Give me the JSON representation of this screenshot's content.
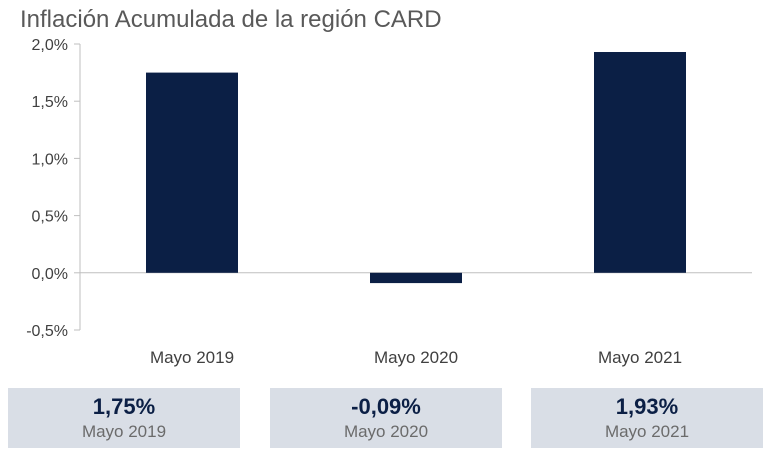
{
  "title": "Inflación Acumulada de la región CARD",
  "colors": {
    "bar": "#0b1f45",
    "axis": "#bfbfbf",
    "box": "#d9dee6"
  },
  "chart_data": {
    "type": "bar",
    "title": "Inflación Acumulada de la región CARD",
    "categories": [
      "Mayo 2019",
      "Mayo 2020",
      "Mayo 2021"
    ],
    "values": [
      1.75,
      -0.09,
      1.93
    ],
    "ylim": [
      -0.5,
      2.0
    ],
    "yticks": [
      -0.5,
      0.0,
      0.5,
      1.0,
      1.5,
      2.0
    ],
    "ytick_labels": [
      "-0,5%",
      "0,0%",
      "0,5%",
      "1,0%",
      "1,5%",
      "2,0%"
    ],
    "grid": false,
    "legend": "none"
  },
  "summary": [
    {
      "value": "1,75%",
      "label": "Mayo 2019"
    },
    {
      "value": "-0,09%",
      "label": "Mayo 2020"
    },
    {
      "value": "1,93%",
      "label": "Mayo 2021"
    }
  ]
}
